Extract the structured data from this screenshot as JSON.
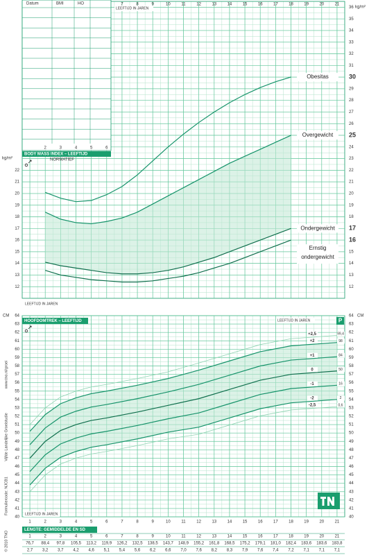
{
  "chart_data": [
    {
      "type": "line",
      "title": "BODY MASS INDEX – LEEFTIJD",
      "subtitle": "NORMATIEF",
      "x_label": "LEEFTIJD IN JAREN",
      "y_label": "kg/m²",
      "x": [
        2,
        3,
        4,
        5,
        6,
        7,
        8,
        9,
        10,
        11,
        12,
        13,
        14,
        15,
        16,
        17,
        18
      ],
      "series": [
        {
          "name": "Obesitas",
          "color": "#16936a",
          "values": [
            20.1,
            19.6,
            19.3,
            19.4,
            19.9,
            20.6,
            21.6,
            22.8,
            24.0,
            25.1,
            26.1,
            27.0,
            27.8,
            28.5,
            29.1,
            29.6,
            30.0
          ]
        },
        {
          "name": "Overgewicht",
          "color": "#16936a",
          "values": [
            18.4,
            17.8,
            17.5,
            17.4,
            17.6,
            17.9,
            18.4,
            19.1,
            19.8,
            20.5,
            21.2,
            21.9,
            22.6,
            23.2,
            23.8,
            24.4,
            25.0
          ]
        },
        {
          "name": "Ondergewicht",
          "color": "#0f6e4c",
          "values": [
            14.1,
            13.8,
            13.6,
            13.4,
            13.2,
            13.1,
            13.1,
            13.2,
            13.4,
            13.7,
            14.1,
            14.5,
            15.0,
            15.5,
            16.0,
            16.5,
            17.0
          ]
        },
        {
          "name": "Ernstig ondergewicht",
          "color": "#0f6e4c",
          "values": [
            13.4,
            13.0,
            12.8,
            12.6,
            12.5,
            12.4,
            12.4,
            12.5,
            12.7,
            12.9,
            13.2,
            13.6,
            14.0,
            14.5,
            15.0,
            15.5,
            16.0
          ]
        }
      ],
      "xlim": [
        0.5,
        21.5
      ],
      "xticks": [
        1,
        2,
        3,
        4,
        5,
        6,
        7,
        8,
        9,
        10,
        11,
        12,
        13,
        14,
        15,
        16,
        17,
        18,
        19,
        20,
        21
      ],
      "ylim": [
        11,
        36.5
      ],
      "yticks": [
        12,
        13,
        14,
        15,
        16,
        17,
        18,
        19,
        20,
        21,
        22,
        23,
        24,
        25,
        26,
        27,
        28,
        29,
        30,
        31,
        32,
        33,
        34,
        35,
        36
      ],
      "grid": true
    },
    {
      "type": "line",
      "title": "HOOFDOMTREK – LEEFTIJD",
      "x_label": "LEEFTIJD IN JAREN",
      "y_label": "CM",
      "badge": "P",
      "x": [
        1,
        2,
        3,
        4,
        5,
        6,
        8,
        10,
        12,
        14,
        16,
        18,
        21
      ],
      "series": [
        {
          "name": "+2,5",
          "color": "#8fd3b2",
          "values": [
            51.0,
            53.0,
            54.3,
            55.0,
            55.5,
            55.8,
            56.5,
            57.3,
            58.35,
            59.45,
            60.55,
            61.25,
            61.65
          ]
        },
        {
          "name": "+2",
          "color": "#16936a",
          "values": [
            50.2,
            52.2,
            53.5,
            54.2,
            54.7,
            55.0,
            55.7,
            56.5,
            57.5,
            58.6,
            59.7,
            60.4,
            60.8
          ]
        },
        {
          "name": "+1",
          "color": "#16936a",
          "values": [
            48.6,
            50.6,
            51.9,
            52.6,
            53.1,
            53.4,
            54.1,
            54.9,
            55.8,
            56.9,
            58.0,
            58.7,
            59.1
          ]
        },
        {
          "name": "0",
          "color": "#0f6e4c",
          "values": [
            47.0,
            49.0,
            50.3,
            51.0,
            51.5,
            51.8,
            52.5,
            53.3,
            54.1,
            55.2,
            56.3,
            57.0,
            57.4
          ]
        },
        {
          "name": "-1",
          "color": "#16936a",
          "values": [
            45.4,
            47.4,
            48.7,
            49.4,
            49.9,
            50.2,
            50.9,
            51.7,
            52.4,
            53.5,
            54.6,
            55.3,
            55.7
          ]
        },
        {
          "name": "-2",
          "color": "#16936a",
          "values": [
            43.8,
            45.8,
            47.1,
            47.8,
            48.3,
            48.6,
            49.3,
            50.1,
            50.7,
            51.8,
            52.9,
            53.6,
            54.0
          ]
        },
        {
          "name": "-2,5",
          "color": "#8fd3b2",
          "values": [
            43.0,
            45.0,
            46.3,
            47.0,
            47.5,
            47.8,
            48.5,
            49.3,
            49.85,
            50.95,
            52.05,
            52.75,
            53.15
          ]
        }
      ],
      "percentiles": [
        "99,4",
        "98",
        "84",
        "50",
        "16",
        "2",
        "0,6"
      ],
      "xlim": [
        0.5,
        21.5
      ],
      "xticks": [
        1,
        2,
        3,
        4,
        5,
        6,
        7,
        8,
        9,
        10,
        11,
        12,
        13,
        14,
        15,
        16,
        17,
        18,
        19,
        20,
        21
      ],
      "ylim": [
        40,
        64
      ],
      "yticks": [
        40,
        41,
        42,
        43,
        44,
        45,
        46,
        47,
        48,
        49,
        50,
        51,
        52,
        53,
        54,
        55,
        56,
        57,
        58,
        59,
        60,
        61,
        62,
        63,
        64
      ],
      "grid": true
    }
  ],
  "record_table": {
    "headers": [
      "Datum",
      "BMI",
      "HO"
    ]
  },
  "length_table": {
    "title": "LENGTE: GEMIDDELDE EN SD",
    "mean": [
      "76,7",
      "88,4",
      "97,8",
      "105,5",
      "113,2",
      "119,9",
      "126,2",
      "132,5",
      "138,5",
      "143,7",
      "148,9",
      "155,2",
      "161,8",
      "168,5",
      "175,2",
      "179,1",
      "181,0",
      "182,4",
      "183,6",
      "183,6",
      "183,8"
    ],
    "sd": [
      "2,7",
      "3,2",
      "3,7",
      "4,2",
      "4,6",
      "5,1",
      "5,4",
      "5,6",
      "6,2",
      "6,6",
      "7,0",
      "7,6",
      "8,2",
      "8,3",
      "7,9",
      "7,6",
      "7,4",
      "7,2",
      "7,1",
      "7,1",
      "7,1"
    ]
  },
  "side_texts": [
    "www.tno.nl/groei",
    "Vijfde Landelijke Groeistudie",
    "Formuliercode: NJCB1",
    "© 2010 TNO"
  ]
}
